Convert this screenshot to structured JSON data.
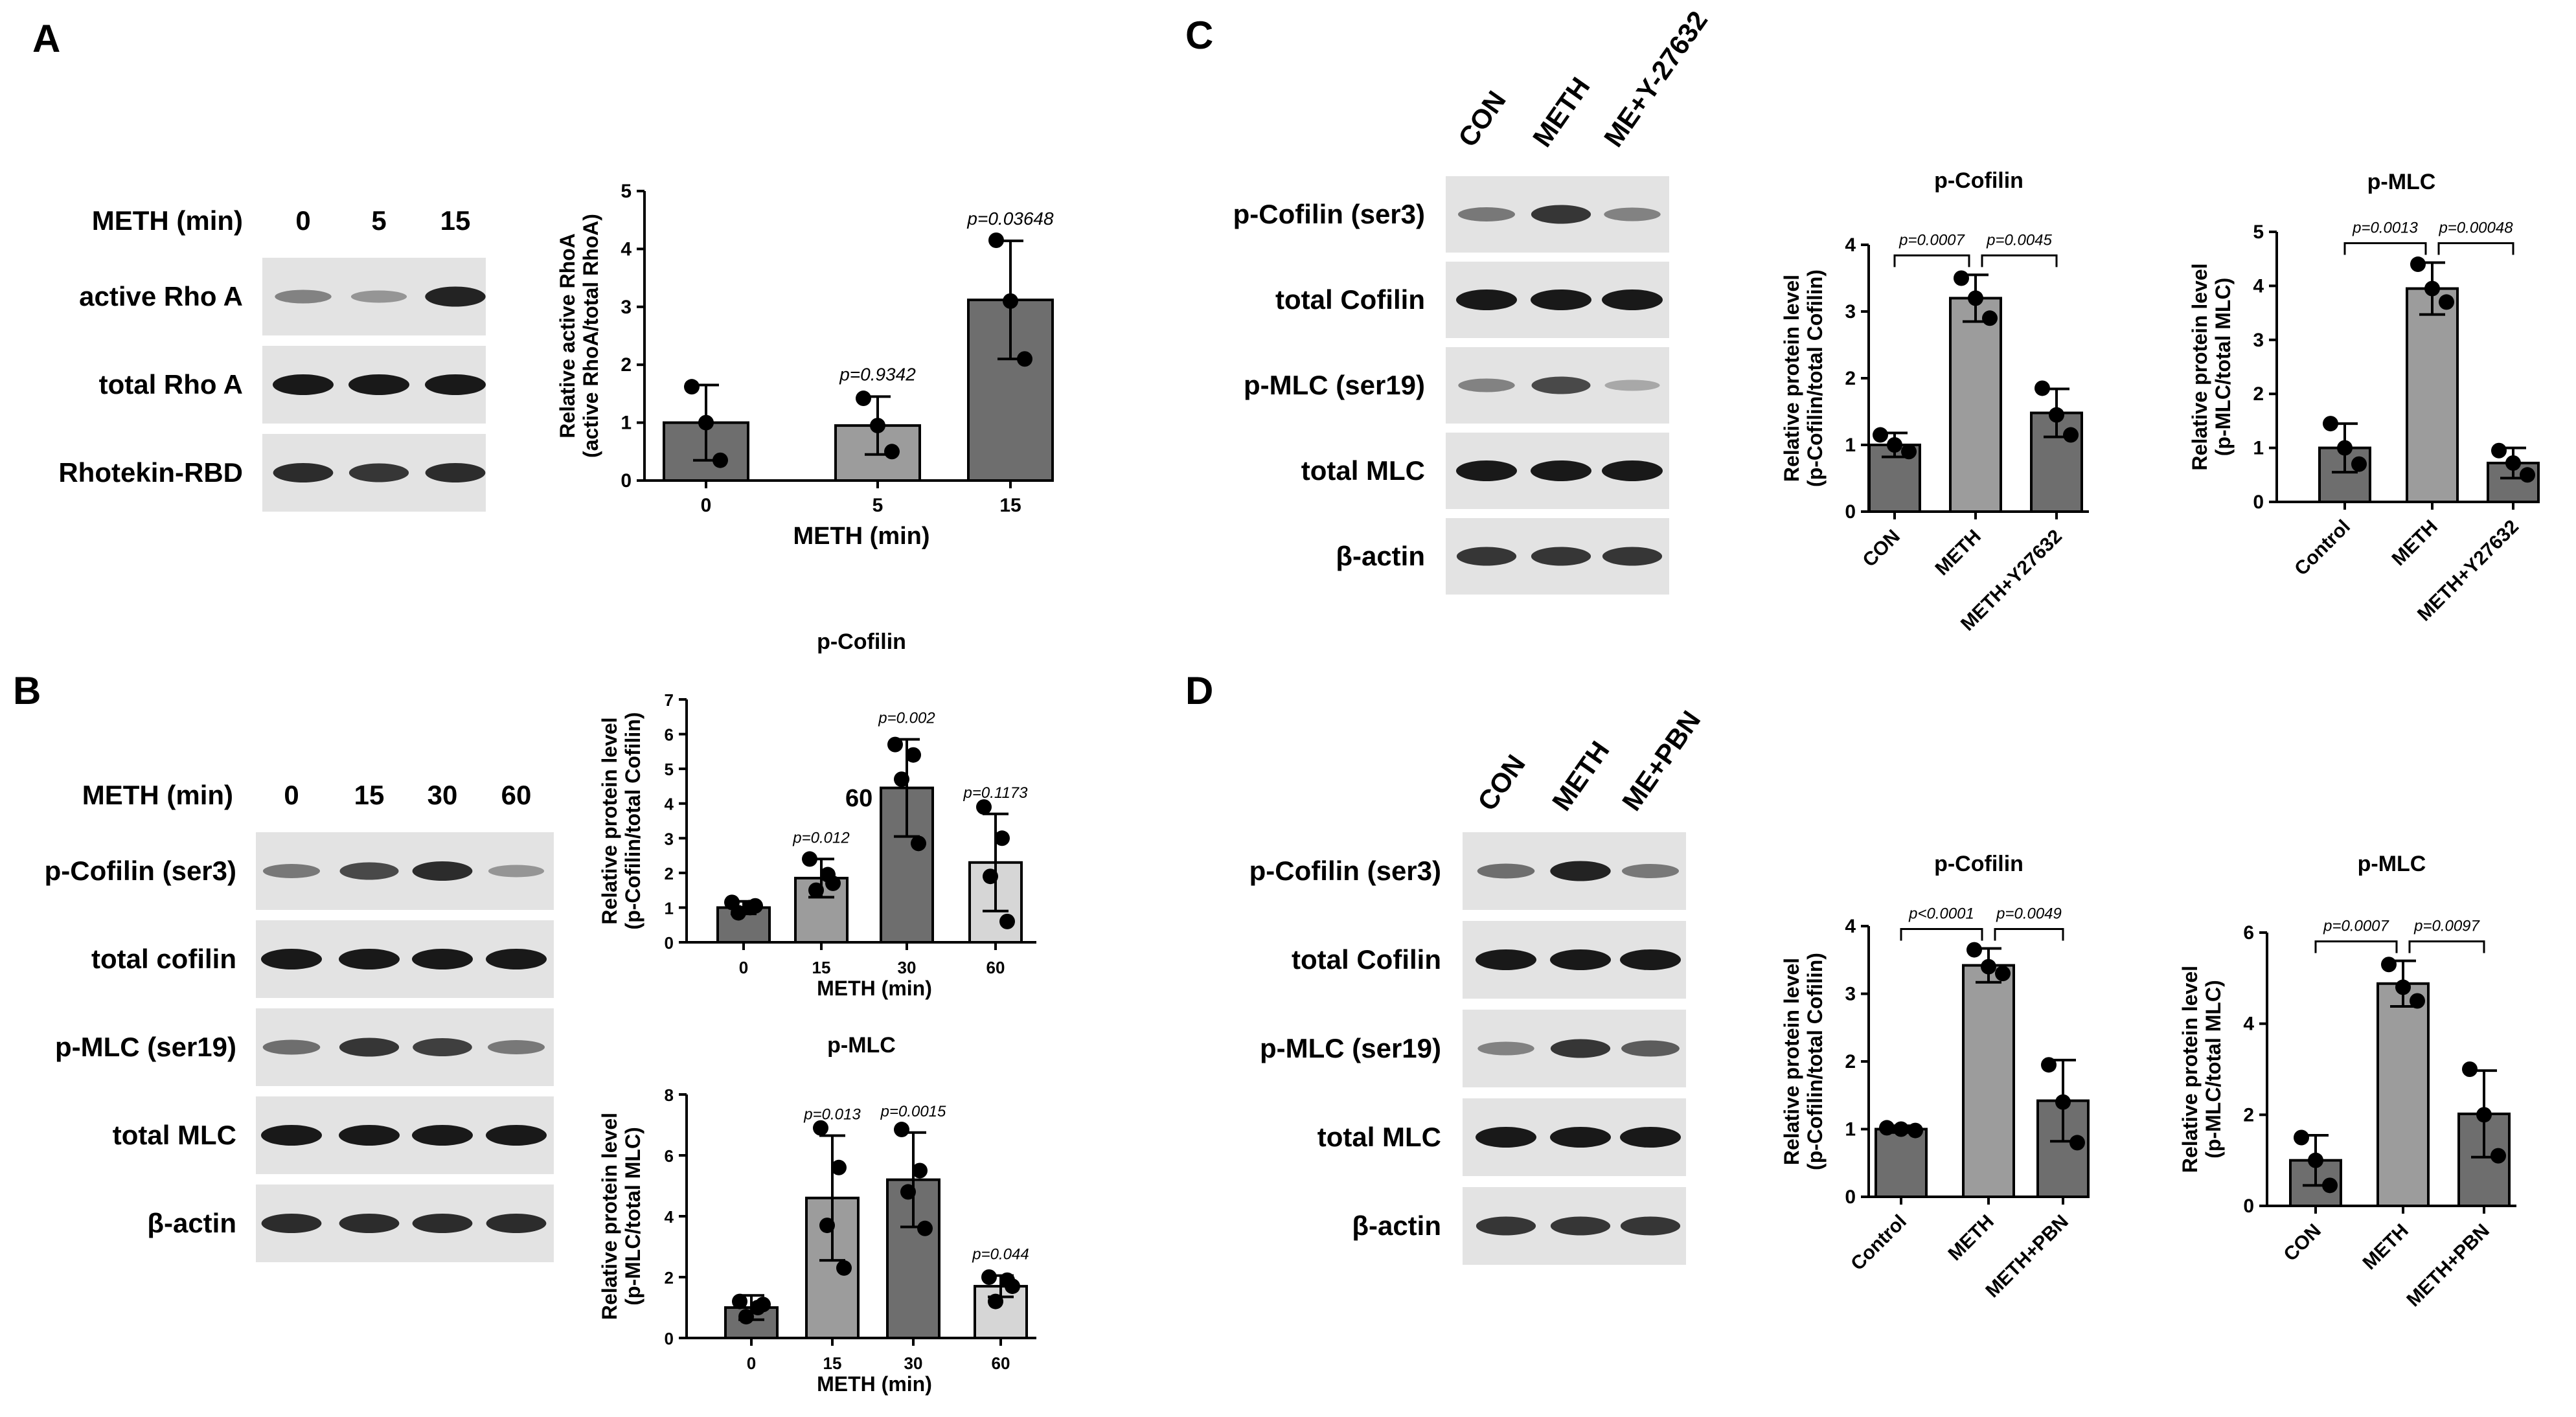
{
  "panels": {
    "A": {
      "letter": "A",
      "blot": {
        "header_label": "METH (min)",
        "lanes": [
          "0",
          "5",
          "15"
        ],
        "rows": [
          {
            "label": "active Rho A",
            "intensity": [
              0.45,
              0.35,
              0.95
            ]
          },
          {
            "label": "total Rho A",
            "intensity": [
              1,
              1,
              1
            ]
          },
          {
            "label": "Rhotekin-RBD",
            "intensity": [
              0.9,
              0.85,
              0.9
            ]
          }
        ]
      }
    },
    "B": {
      "letter": "B",
      "blot": {
        "header_label": "METH (min)",
        "lanes": [
          "0",
          "15",
          "30",
          "60"
        ],
        "rows": [
          {
            "label": "p-Cofilin (ser3)",
            "intensity": [
              0.5,
              0.75,
              0.9,
              0.35
            ]
          },
          {
            "label": "total cofilin",
            "intensity": [
              1,
              1,
              1,
              1
            ]
          },
          {
            "label": "p-MLC (ser19)",
            "intensity": [
              0.55,
              0.85,
              0.8,
              0.5
            ]
          },
          {
            "label": "total MLC",
            "intensity": [
              1,
              1,
              1,
              1
            ]
          },
          {
            "label": "β-actin",
            "intensity": [
              0.9,
              0.9,
              0.9,
              0.9
            ]
          }
        ]
      },
      "stray_label": "60"
    },
    "C": {
      "letter": "C",
      "blot": {
        "lanes": [
          "CON",
          "METH",
          "ME+Y-27632"
        ],
        "rows": [
          {
            "label": "p-Cofilin (ser3)",
            "intensity": [
              0.5,
              0.85,
              0.45
            ]
          },
          {
            "label": "total Cofilin",
            "intensity": [
              1,
              1,
              1
            ]
          },
          {
            "label": "p-MLC (ser19)",
            "intensity": [
              0.45,
              0.75,
              0.25
            ]
          },
          {
            "label": "total MLC",
            "intensity": [
              1,
              1,
              1
            ]
          },
          {
            "label": "β-actin",
            "intensity": [
              0.85,
              0.85,
              0.85
            ]
          }
        ]
      }
    },
    "D": {
      "letter": "D",
      "blot": {
        "lanes": [
          "CON",
          "METH",
          "ME+PBN"
        ],
        "rows": [
          {
            "label": "p-Cofilin (ser3)",
            "intensity": [
              0.55,
              0.95,
              0.5
            ]
          },
          {
            "label": "total Cofilin",
            "intensity": [
              1,
              1,
              1
            ]
          },
          {
            "label": "p-MLC (ser19)",
            "intensity": [
              0.45,
              0.85,
              0.65
            ]
          },
          {
            "label": "total MLC",
            "intensity": [
              1,
              1,
              1
            ]
          },
          {
            "label": "β-actin",
            "intensity": [
              0.85,
              0.85,
              0.85
            ]
          }
        ]
      }
    }
  },
  "colors": {
    "dark_bar": "#6e6e6e",
    "mid_bar": "#9c9c9c",
    "light_bar": "#d6d6d6"
  },
  "chart_data": [
    {
      "id": "A",
      "type": "bar",
      "title": "",
      "xlabel": "METH (min)",
      "ylabel": [
        "Relative active RhoA",
        "(active RhoA/total RhoA)"
      ],
      "categories": [
        "0",
        "5",
        "15"
      ],
      "values": [
        1.0,
        0.95,
        3.12
      ],
      "errors": [
        0.65,
        0.5,
        1.02
      ],
      "points": [
        [
          1.62,
          1.0,
          0.35
        ],
        [
          1.42,
          0.95,
          0.5
        ],
        [
          4.15,
          3.1,
          2.1
        ]
      ],
      "pvalues": [
        "",
        "p=0.9342",
        "p=0.03648"
      ],
      "ylim": [
        0,
        5
      ],
      "yticks": [
        0,
        1,
        2,
        3,
        4,
        5
      ],
      "bar_colors": [
        "#6e6e6e",
        "#9c9c9c",
        "#6e6e6e"
      ]
    },
    {
      "id": "B1",
      "type": "bar",
      "title": "p-Cofilin",
      "xlabel": "METH (min)",
      "ylabel": [
        "Relative protein level",
        "(p-Cofilin/total Cofilin)"
      ],
      "categories": [
        "0",
        "15",
        "30",
        "60"
      ],
      "values": [
        1.0,
        1.85,
        4.45,
        2.3
      ],
      "errors": [
        0.18,
        0.55,
        1.4,
        1.4
      ],
      "points": [
        [
          1.15,
          1.0,
          0.85,
          1.05
        ],
        [
          2.4,
          1.95,
          1.5,
          1.7
        ],
        [
          5.7,
          5.4,
          4.7,
          2.85
        ],
        [
          3.9,
          3.0,
          1.9,
          0.6
        ]
      ],
      "pvalues": [
        "",
        "p=0.012",
        "p=0.002",
        "p=0.1173"
      ],
      "ylim": [
        0,
        7
      ],
      "yticks": [
        0,
        1,
        2,
        3,
        4,
        5,
        6,
        7
      ],
      "bar_colors": [
        "#6e6e6e",
        "#9c9c9c",
        "#6e6e6e",
        "#d6d6d6"
      ]
    },
    {
      "id": "B2",
      "type": "bar",
      "title": "p-MLC",
      "xlabel": "METH (min)",
      "ylabel": [
        "Relative protein level",
        "(p-MLC/total MLC)"
      ],
      "categories": [
        "0",
        "15",
        "30",
        "60"
      ],
      "values": [
        1.0,
        4.6,
        5.2,
        1.7
      ],
      "errors": [
        0.4,
        2.05,
        1.55,
        0.35
      ],
      "points": [
        [
          1.2,
          1.0,
          0.7,
          1.1
        ],
        [
          6.9,
          5.6,
          3.7,
          2.3
        ],
        [
          6.85,
          5.5,
          4.8,
          3.6
        ],
        [
          2.0,
          1.9,
          1.2,
          1.7
        ]
      ],
      "pvalues": [
        "",
        "p=0.013",
        "p=0.0015",
        "p=0.044"
      ],
      "ylim": [
        0,
        8
      ],
      "yticks": [
        0,
        2,
        4,
        6,
        8
      ],
      "bar_colors": [
        "#6e6e6e",
        "#9c9c9c",
        "#6e6e6e",
        "#d6d6d6"
      ]
    },
    {
      "id": "C1",
      "type": "bar",
      "title": "p-Cofilin",
      "xlabel": "",
      "ylabel": [
        "Relative protein level",
        "(p-Cofilin/total Cofilin)"
      ],
      "categories": [
        "CON",
        "METH",
        "METH+Y27632"
      ],
      "values": [
        1.0,
        3.2,
        1.48
      ],
      "errors": [
        0.18,
        0.35,
        0.36
      ],
      "points": [
        [
          1.15,
          1.0,
          0.9
        ],
        [
          3.5,
          3.2,
          2.9
        ],
        [
          1.85,
          1.45,
          1.15
        ]
      ],
      "brackets": [
        {
          "from": 0,
          "to": 1,
          "label": "p=0.0007"
        },
        {
          "from": 1,
          "to": 2,
          "label": "p=0.0045"
        }
      ],
      "ylim": [
        0,
        4
      ],
      "yticks": [
        0,
        1,
        2,
        3,
        4
      ],
      "bar_colors": [
        "#6e6e6e",
        "#9c9c9c",
        "#6e6e6e"
      ]
    },
    {
      "id": "C2",
      "type": "bar",
      "title": "p-MLC",
      "xlabel": "",
      "ylabel": [
        "Relative protein level",
        "(p-MLC/total MLC)"
      ],
      "categories": [
        "Control",
        "METH",
        "METH+Y27632"
      ],
      "values": [
        1.0,
        3.95,
        0.72
      ],
      "errors": [
        0.45,
        0.48,
        0.28
      ],
      "points": [
        [
          1.45,
          1.0,
          0.7
        ],
        [
          4.4,
          3.95,
          3.7
        ],
        [
          0.95,
          0.72,
          0.5
        ]
      ],
      "brackets": [
        {
          "from": 0,
          "to": 1,
          "label": "p=0.0013"
        },
        {
          "from": 1,
          "to": 2,
          "label": "p=0.00048"
        }
      ],
      "ylim": [
        0,
        5
      ],
      "yticks": [
        0,
        1,
        2,
        3,
        4,
        5
      ],
      "bar_colors": [
        "#6e6e6e",
        "#9c9c9c",
        "#6e6e6e"
      ]
    },
    {
      "id": "D1",
      "type": "bar",
      "title": "p-Cofilin",
      "xlabel": "",
      "ylabel": [
        "Relative protein level",
        "(p-Cofilin/total Cofilin)"
      ],
      "categories": [
        "Control",
        "METH",
        "METH+PBN"
      ],
      "values": [
        1.0,
        3.42,
        1.42
      ],
      "errors": [
        0.05,
        0.25,
        0.6
      ],
      "points": [
        [
          1.02,
          1.0,
          0.98
        ],
        [
          3.65,
          3.4,
          3.3
        ],
        [
          1.95,
          1.4,
          0.8
        ]
      ],
      "brackets": [
        {
          "from": 0,
          "to": 1,
          "label": "p<0.0001"
        },
        {
          "from": 1,
          "to": 2,
          "label": "p=0.0049"
        }
      ],
      "ylim": [
        0,
        4
      ],
      "yticks": [
        0,
        1,
        2,
        3,
        4
      ],
      "bar_colors": [
        "#6e6e6e",
        "#9c9c9c",
        "#6e6e6e"
      ]
    },
    {
      "id": "D2",
      "type": "bar",
      "title": "p-MLC",
      "xlabel": "",
      "ylabel": [
        "Relative protein level",
        "(p-MLC/total MLC)"
      ],
      "categories": [
        "CON",
        "METH",
        "METH+PBN"
      ],
      "values": [
        1.0,
        4.88,
        2.02
      ],
      "errors": [
        0.55,
        0.5,
        0.95
      ],
      "points": [
        [
          1.5,
          1.0,
          0.45
        ],
        [
          5.3,
          4.8,
          4.5
        ],
        [
          3.0,
          2.0,
          1.1
        ]
      ],
      "brackets": [
        {
          "from": 0,
          "to": 1,
          "label": "p=0.0007"
        },
        {
          "from": 1,
          "to": 2,
          "label": "p=0.0097"
        }
      ],
      "ylim": [
        0,
        6
      ],
      "yticks": [
        0,
        2,
        4,
        6
      ],
      "bar_colors": [
        "#6e6e6e",
        "#9c9c9c",
        "#6e6e6e"
      ]
    }
  ]
}
